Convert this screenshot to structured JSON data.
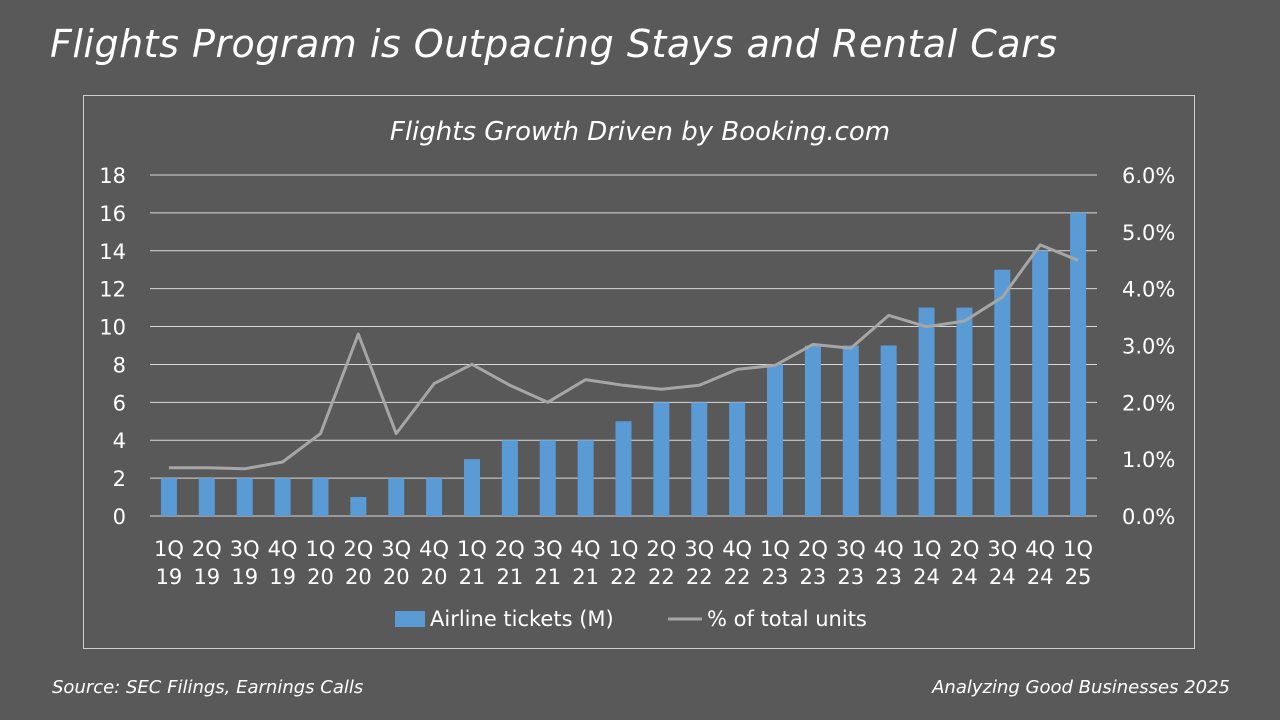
{
  "slide": {
    "title": "Flights Program is Outpacing Stays and Rental Cars",
    "source": "Source: SEC Filings, Earnings Calls",
    "credit": "Analyzing Good Businesses 2025"
  },
  "colors": {
    "background": "#595959",
    "bar": "#5b9bd5",
    "line": "#a6a6a6",
    "grid": "#d9d9d9",
    "text": "#ffffff"
  },
  "chart_data": {
    "type": "bar",
    "title": "Flights Growth Driven by Booking.com",
    "categories": [
      [
        "1Q",
        "19"
      ],
      [
        "2Q",
        "19"
      ],
      [
        "3Q",
        "19"
      ],
      [
        "4Q",
        "19"
      ],
      [
        "1Q",
        "20"
      ],
      [
        "2Q",
        "20"
      ],
      [
        "3Q",
        "20"
      ],
      [
        "4Q",
        "20"
      ],
      [
        "1Q",
        "21"
      ],
      [
        "2Q",
        "21"
      ],
      [
        "3Q",
        "21"
      ],
      [
        "4Q",
        "21"
      ],
      [
        "1Q",
        "22"
      ],
      [
        "2Q",
        "22"
      ],
      [
        "3Q",
        "22"
      ],
      [
        "4Q",
        "22"
      ],
      [
        "1Q",
        "23"
      ],
      [
        "2Q",
        "23"
      ],
      [
        "3Q",
        "23"
      ],
      [
        "4Q",
        "23"
      ],
      [
        "1Q",
        "24"
      ],
      [
        "2Q",
        "24"
      ],
      [
        "3Q",
        "24"
      ],
      [
        "4Q",
        "24"
      ],
      [
        "1Q",
        "25"
      ]
    ],
    "series": [
      {
        "name": "Airline tickets (M)",
        "type": "bar",
        "axis": "left",
        "values": [
          2,
          2,
          2,
          2,
          2,
          1,
          2,
          2,
          3,
          4,
          4,
          4,
          5,
          6,
          6,
          6,
          8,
          9,
          9,
          9,
          11,
          11,
          13,
          14,
          16
        ]
      },
      {
        "name": "% of total units",
        "type": "line",
        "axis": "right",
        "values": [
          0.85,
          0.85,
          0.83,
          0.95,
          1.45,
          3.2,
          1.45,
          2.33,
          2.67,
          2.3,
          2.0,
          2.4,
          2.3,
          2.23,
          2.3,
          2.58,
          2.65,
          3.02,
          2.95,
          3.53,
          3.33,
          3.43,
          3.85,
          4.77,
          4.5
        ]
      }
    ],
    "y_left": {
      "min": 0,
      "max": 18,
      "step": 2,
      "tick_labels": [
        "0",
        "2",
        "4",
        "6",
        "8",
        "10",
        "12",
        "14",
        "16",
        "18"
      ]
    },
    "y_right": {
      "min": 0,
      "max": 6,
      "step": 1,
      "tick_labels": [
        "0.0%",
        "1.0%",
        "2.0%",
        "3.0%",
        "4.0%",
        "5.0%",
        "6.0%"
      ]
    },
    "grid": true,
    "legend_position": "bottom"
  }
}
